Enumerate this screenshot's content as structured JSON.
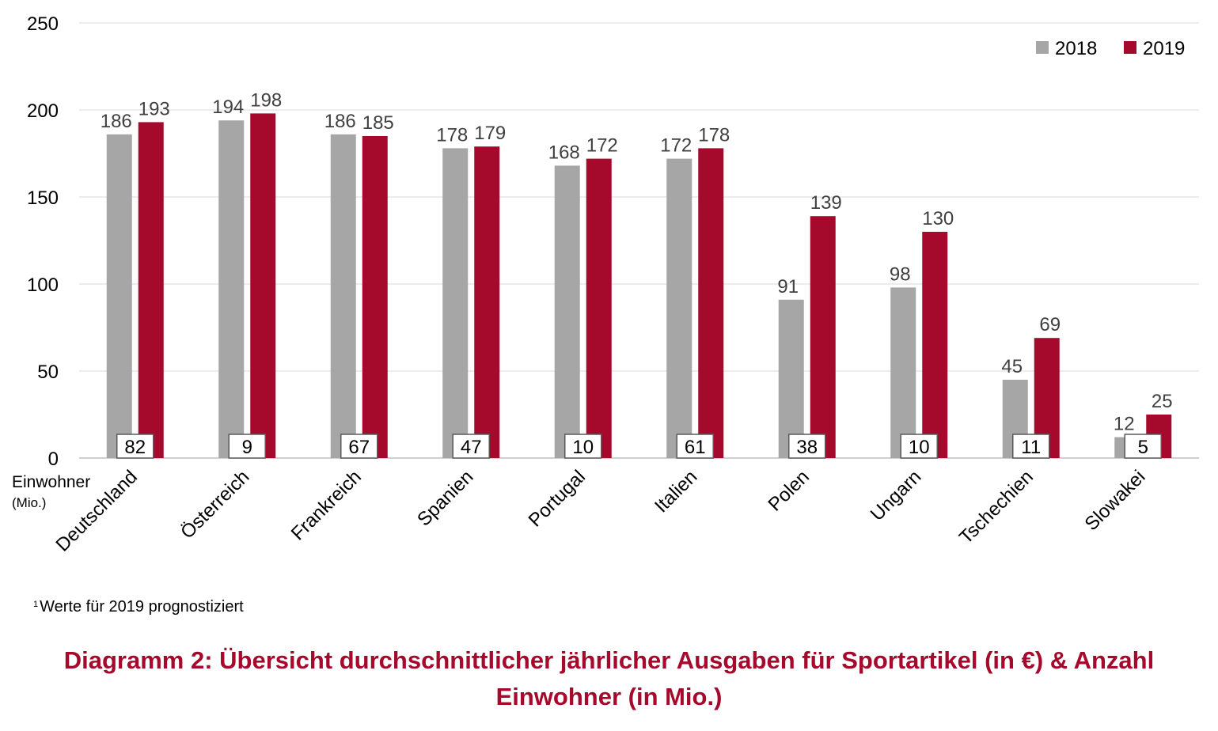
{
  "chart_data": {
    "type": "bar",
    "categories": [
      "Deutschland",
      "Österreich",
      "Frankreich",
      "Spanien",
      "Portugal",
      "Italien",
      "Polen",
      "Ungarn",
      "Tschechien",
      "Slowakei"
    ],
    "series": [
      {
        "name": "2018",
        "values": [
          186,
          194,
          186,
          178,
          168,
          172,
          91,
          98,
          45,
          12
        ],
        "color": "#A6A6A6"
      },
      {
        "name": "2019",
        "values": [
          193,
          198,
          185,
          179,
          172,
          178,
          139,
          130,
          69,
          25
        ],
        "color": "#A50A2D"
      }
    ],
    "population": {
      "label": "Einwohner",
      "unit": "(Mio.)",
      "values": [
        82,
        9,
        67,
        47,
        10,
        61,
        38,
        10,
        11,
        5
      ]
    },
    "ylim": [
      0,
      250
    ],
    "yticks": [
      0,
      50,
      100,
      150,
      200,
      250
    ],
    "grid": true,
    "legend_position": "top-right",
    "title": "Diagramm 2: Übersicht durchschnittlicher jährlicher Ausgaben für Sportartikel (in €) & Anzahl Einwohner (in Mio.)",
    "footnote": {
      "marker": "1",
      "text": "Werte für 2019 prognostiziert"
    }
  }
}
